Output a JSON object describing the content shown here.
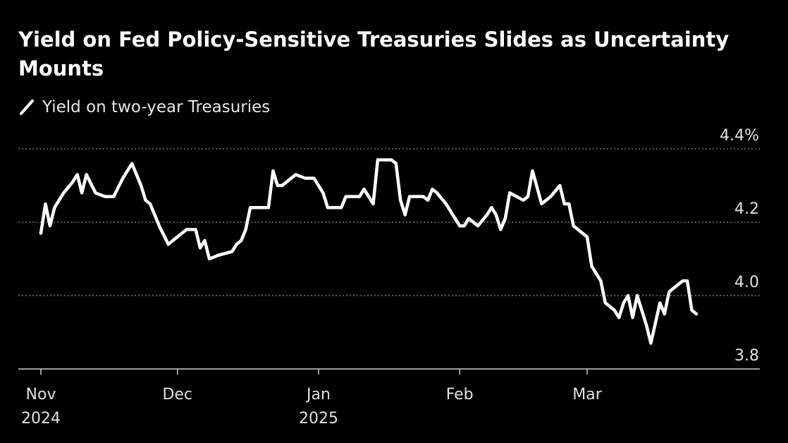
{
  "title": "Yield on Fed Policy-Sensitive Treasuries Slides as Uncertainty Mounts",
  "legend": {
    "label": "Yield on two-year Treasuries",
    "icon": "slash-line-icon"
  },
  "colors": {
    "background": "#000000",
    "line": "#ffffff",
    "grid": "#8a8a8a",
    "axis": "#cccccc"
  },
  "chart_data": {
    "type": "line",
    "title": "Yield on Fed Policy-Sensitive Treasuries Slides as Uncertainty Mounts",
    "ylim": [
      3.8,
      4.4
    ],
    "y_ticks": [
      {
        "value": 4.4,
        "label": "4.4%"
      },
      {
        "value": 4.2,
        "label": "4.2"
      },
      {
        "value": 4.0,
        "label": "4.0"
      },
      {
        "value": 3.8,
        "label": "3.8"
      }
    ],
    "x_range": [
      "2024-11-01",
      "2025-03-25"
    ],
    "x_ticks": [
      {
        "date": "2024-11-01",
        "label": "Nov",
        "sublabel": "2024"
      },
      {
        "date": "2024-12-01",
        "label": "Dec",
        "sublabel": ""
      },
      {
        "date": "2025-01-01",
        "label": "Jan",
        "sublabel": "2025"
      },
      {
        "date": "2025-02-01",
        "label": "Feb",
        "sublabel": ""
      },
      {
        "date": "2025-03-01",
        "label": "Mar",
        "sublabel": ""
      }
    ],
    "grid": "horizontal dotted",
    "legend_position": "top-left",
    "series": [
      {
        "name": "Yield on two-year Treasuries",
        "points": [
          [
            "2024-11-01",
            4.17
          ],
          [
            "2024-11-02",
            4.25
          ],
          [
            "2024-11-03",
            4.19
          ],
          [
            "2024-11-04",
            4.24
          ],
          [
            "2024-11-06",
            4.28
          ],
          [
            "2024-11-08",
            4.31
          ],
          [
            "2024-11-09",
            4.33
          ],
          [
            "2024-11-10",
            4.28
          ],
          [
            "2024-11-11",
            4.33
          ],
          [
            "2024-11-13",
            4.28
          ],
          [
            "2024-11-15",
            4.27
          ],
          [
            "2024-11-17",
            4.27
          ],
          [
            "2024-11-19",
            4.32
          ],
          [
            "2024-11-21",
            4.36
          ],
          [
            "2024-11-23",
            4.3
          ],
          [
            "2024-11-24",
            4.26
          ],
          [
            "2024-11-25",
            4.25
          ],
          [
            "2024-11-26",
            4.22
          ],
          [
            "2024-11-27",
            4.19
          ],
          [
            "2024-11-29",
            4.14
          ],
          [
            "2024-12-01",
            4.16
          ],
          [
            "2024-12-03",
            4.18
          ],
          [
            "2024-12-05",
            4.18
          ],
          [
            "2024-12-06",
            4.13
          ],
          [
            "2024-12-07",
            4.15
          ],
          [
            "2024-12-08",
            4.1
          ],
          [
            "2024-12-10",
            4.11
          ],
          [
            "2024-12-13",
            4.12
          ],
          [
            "2024-12-14",
            4.14
          ],
          [
            "2024-12-15",
            4.15
          ],
          [
            "2024-12-16",
            4.18
          ],
          [
            "2024-12-17",
            4.24
          ],
          [
            "2024-12-19",
            4.24
          ],
          [
            "2024-12-21",
            4.24
          ],
          [
            "2024-12-22",
            4.34
          ],
          [
            "2024-12-23",
            4.3
          ],
          [
            "2024-12-24",
            4.3
          ],
          [
            "2024-12-26",
            4.32
          ],
          [
            "2024-12-27",
            4.33
          ],
          [
            "2024-12-29",
            4.32
          ],
          [
            "2024-12-31",
            4.32
          ],
          [
            "2025-01-02",
            4.28
          ],
          [
            "2025-01-03",
            4.24
          ],
          [
            "2025-01-06",
            4.24
          ],
          [
            "2025-01-07",
            4.27
          ],
          [
            "2025-01-08",
            4.27
          ],
          [
            "2025-01-10",
            4.27
          ],
          [
            "2025-01-11",
            4.29
          ],
          [
            "2025-01-13",
            4.25
          ],
          [
            "2025-01-14",
            4.37
          ],
          [
            "2025-01-17",
            4.37
          ],
          [
            "2025-01-18",
            4.36
          ],
          [
            "2025-01-19",
            4.26
          ],
          [
            "2025-01-20",
            4.22
          ],
          [
            "2025-01-21",
            4.27
          ],
          [
            "2025-01-24",
            4.27
          ],
          [
            "2025-01-25",
            4.26
          ],
          [
            "2025-01-26",
            4.29
          ],
          [
            "2025-01-27",
            4.28
          ],
          [
            "2025-01-29",
            4.25
          ],
          [
            "2025-02-01",
            4.19
          ],
          [
            "2025-02-02",
            4.19
          ],
          [
            "2025-02-03",
            4.21
          ],
          [
            "2025-02-05",
            4.19
          ],
          [
            "2025-02-07",
            4.22
          ],
          [
            "2025-02-08",
            4.24
          ],
          [
            "2025-02-09",
            4.22
          ],
          [
            "2025-02-10",
            4.18
          ],
          [
            "2025-02-11",
            4.21
          ],
          [
            "2025-02-12",
            4.28
          ],
          [
            "2025-02-15",
            4.26
          ],
          [
            "2025-02-16",
            4.27
          ],
          [
            "2025-02-17",
            4.34
          ],
          [
            "2025-02-19",
            4.25
          ],
          [
            "2025-02-21",
            4.27
          ],
          [
            "2025-02-23",
            4.3
          ],
          [
            "2025-02-24",
            4.25
          ],
          [
            "2025-02-25",
            4.25
          ],
          [
            "2025-02-26",
            4.19
          ],
          [
            "2025-02-28",
            4.17
          ],
          [
            "2025-03-01",
            4.16
          ],
          [
            "2025-03-02",
            4.08
          ],
          [
            "2025-03-04",
            4.04
          ],
          [
            "2025-03-05",
            3.98
          ],
          [
            "2025-03-07",
            3.96
          ],
          [
            "2025-03-08",
            3.94
          ],
          [
            "2025-03-09",
            3.98
          ],
          [
            "2025-03-10",
            4.0
          ],
          [
            "2025-03-11",
            3.94
          ],
          [
            "2025-03-12",
            4.0
          ],
          [
            "2025-03-14",
            3.92
          ],
          [
            "2025-03-15",
            3.87
          ],
          [
            "2025-03-17",
            3.98
          ],
          [
            "2025-03-18",
            3.95
          ],
          [
            "2025-03-19",
            4.01
          ],
          [
            "2025-03-21",
            4.03
          ],
          [
            "2025-03-22",
            4.04
          ],
          [
            "2025-03-23",
            4.04
          ],
          [
            "2025-03-24",
            3.96
          ],
          [
            "2025-03-25",
            3.95
          ]
        ]
      }
    ]
  }
}
